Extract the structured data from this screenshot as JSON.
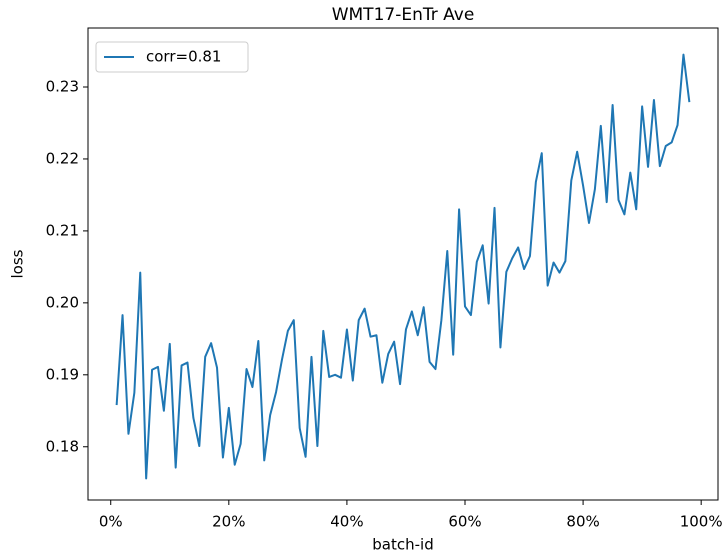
{
  "chart_data": {
    "type": "line",
    "title": "WMT17-EnTr Ave",
    "x_label": "batch-id",
    "y_label": "loss",
    "x": [
      1,
      2,
      3,
      4,
      5,
      6,
      7,
      8,
      9,
      10,
      11,
      12,
      13,
      14,
      15,
      16,
      17,
      18,
      19,
      20,
      21,
      22,
      23,
      24,
      25,
      26,
      27,
      28,
      29,
      30,
      31,
      32,
      33,
      34,
      35,
      36,
      37,
      38,
      39,
      40,
      41,
      42,
      43,
      44,
      45,
      46,
      47,
      48,
      49,
      50,
      51,
      52,
      53,
      54,
      55,
      56,
      57,
      58,
      59,
      60,
      61,
      62,
      63,
      64,
      65,
      66,
      67,
      68,
      69,
      70,
      71,
      72,
      73,
      74,
      75,
      76,
      77,
      78,
      79,
      80,
      81,
      82,
      83,
      84,
      85,
      86,
      87,
      88,
      89,
      90,
      91,
      92,
      93,
      94,
      95,
      96,
      97,
      98
    ],
    "series": [
      {
        "name": "corr=0.81",
        "color": "#1f77b4",
        "values": [
          0.1858,
          0.1983,
          0.1818,
          0.1875,
          0.2042,
          0.1756,
          0.1907,
          0.1911,
          0.185,
          0.1943,
          0.1771,
          0.1913,
          0.1917,
          0.184,
          0.1801,
          0.1925,
          0.1944,
          0.191,
          0.1785,
          0.1854,
          0.1775,
          0.1804,
          0.1908,
          0.1883,
          0.1947,
          0.1781,
          0.1844,
          0.1876,
          0.1921,
          0.1961,
          0.1976,
          0.1826,
          0.1786,
          0.1925,
          0.1801,
          0.1961,
          0.1897,
          0.19,
          0.1896,
          0.1963,
          0.1892,
          0.1976,
          0.1992,
          0.1953,
          0.1955,
          0.1889,
          0.1929,
          0.1946,
          0.1887,
          0.1963,
          0.1988,
          0.1955,
          0.1994,
          0.1918,
          0.1908,
          0.1976,
          0.2072,
          0.1928,
          0.213,
          0.1995,
          0.1983,
          0.2057,
          0.208,
          0.1999,
          0.2132,
          0.1938,
          0.2043,
          0.2062,
          0.2077,
          0.2047,
          0.2065,
          0.2168,
          0.2208,
          0.2024,
          0.2056,
          0.2042,
          0.2058,
          0.217,
          0.221,
          0.2163,
          0.2111,
          0.2158,
          0.2246,
          0.214,
          0.2275,
          0.2143,
          0.2123,
          0.2181,
          0.213,
          0.2273,
          0.2189,
          0.2282,
          0.219,
          0.2218,
          0.2223,
          0.2247,
          0.2345,
          0.2279
        ]
      }
    ],
    "xlim": [
      -3.85,
      102.85
    ],
    "ylim": [
      0.1726,
      0.2382
    ],
    "xticks": [
      {
        "value": 0,
        "label": "0%"
      },
      {
        "value": 20,
        "label": "20%"
      },
      {
        "value": 40,
        "label": "40%"
      },
      {
        "value": 60,
        "label": "60%"
      },
      {
        "value": 80,
        "label": "80%"
      },
      {
        "value": 100,
        "label": "100%"
      }
    ],
    "yticks": [
      0.18,
      0.19,
      {
        "value": 0.2,
        "label": "0.20"
      },
      0.21,
      0.22,
      0.23
    ],
    "legend": "upper left"
  }
}
